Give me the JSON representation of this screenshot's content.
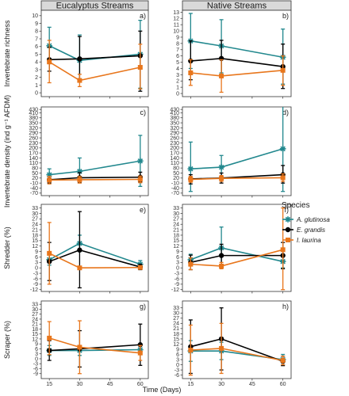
{
  "figure": {
    "columns": [
      "Eucalyptus Streams",
      "Native Streams"
    ],
    "xlabel": "Time (Days)",
    "x_ticks": [
      15,
      30,
      45,
      60
    ],
    "legend": {
      "title": "Species",
      "placement": "right",
      "entries": [
        {
          "name": "A. glutinosa",
          "color": "#22888e",
          "marker": "star"
        },
        {
          "name": "E. grandis",
          "color": "#000000",
          "marker": "circle"
        },
        {
          "name": "I. laurina",
          "color": "#e8761c",
          "marker": "square"
        }
      ]
    }
  },
  "chart_data": [
    {
      "type": "line",
      "panel": "a)",
      "row": 0,
      "col": 0,
      "ylabel": "Invertebrate richness",
      "ylim": [
        -0.5,
        10.7
      ],
      "y_ticks": [
        0,
        1,
        2,
        3,
        4,
        5,
        6,
        7,
        8,
        9,
        10
      ],
      "x": [
        15,
        30,
        60
      ],
      "series": [
        {
          "name": "A. glutinosa",
          "color": "#22888e",
          "values": [
            6.1,
            4.2,
            5.0
          ],
          "lower": [
            3.9,
            1.5,
            0.6
          ],
          "upper": [
            8.5,
            7.5,
            9.4
          ]
        },
        {
          "name": "E. grandis",
          "color": "#000000",
          "values": [
            4.3,
            4.4,
            4.8
          ],
          "lower": [
            2.8,
            1.5,
            0.2
          ],
          "upper": [
            5.9,
            7.3,
            8.0
          ]
        },
        {
          "name": "I. laurina",
          "color": "#e8761c",
          "values": [
            4.0,
            1.6,
            3.3
          ],
          "lower": [
            1.3,
            0.8,
            0.5
          ],
          "upper": [
            6.8,
            2.4,
            6.3
          ]
        }
      ]
    },
    {
      "type": "line",
      "panel": "b)",
      "row": 0,
      "col": 1,
      "ylim": [
        -0.5,
        13.3
      ],
      "y_ticks": [
        0,
        1,
        2,
        3,
        4,
        5,
        6,
        7,
        8,
        9,
        10,
        11,
        12,
        13
      ],
      "x": [
        15,
        30,
        60
      ],
      "series": [
        {
          "name": "A. glutinosa",
          "color": "#22888e",
          "values": [
            8.4,
            7.6,
            5.8
          ],
          "lower": [
            4.0,
            3.3,
            1.5
          ],
          "upper": [
            12.8,
            11.8,
            10.3
          ]
        },
        {
          "name": "E. grandis",
          "color": "#000000",
          "values": [
            5.2,
            5.6,
            4.3
          ],
          "lower": [
            2.2,
            2.6,
            0.8
          ],
          "upper": [
            8.4,
            8.5,
            7.9
          ]
        },
        {
          "name": "I. laurina",
          "color": "#e8761c",
          "values": [
            3.3,
            2.8,
            3.7
          ],
          "lower": [
            1.3,
            0.2,
            1.3
          ],
          "upper": [
            5.4,
            5.4,
            6.0
          ]
        }
      ]
    },
    {
      "type": "line",
      "panel": "c)",
      "row": 1,
      "col": 0,
      "ylabel": "Invertebrate density (ind g⁻¹ AFDM)",
      "ylim": [
        -85,
        445
      ],
      "y_ticks": [
        -70,
        -40,
        -10,
        20,
        50,
        80,
        110,
        140,
        170,
        200,
        230,
        260,
        290,
        320,
        350,
        380,
        410,
        430
      ],
      "x": [
        15,
        30,
        60
      ],
      "series": [
        {
          "name": "A. glutinosa",
          "color": "#22888e",
          "values": [
            40,
            60,
            122
          ],
          "lower": [
            5,
            18,
            -30
          ],
          "upper": [
            75,
            140,
            275
          ]
        },
        {
          "name": "E. grandis",
          "color": "#000000",
          "values": [
            10,
            22,
            25
          ],
          "lower": [
            -10,
            -8,
            -5
          ],
          "upper": [
            30,
            52,
            55
          ]
        },
        {
          "name": "I. laurina",
          "color": "#e8761c",
          "values": [
            8,
            10,
            12
          ],
          "lower": [
            -15,
            -10,
            -8
          ],
          "upper": [
            30,
            30,
            32
          ]
        }
      ]
    },
    {
      "type": "line",
      "panel": "d)",
      "row": 1,
      "col": 1,
      "ylim": [
        -85,
        445
      ],
      "y_ticks": [
        -70,
        -40,
        -10,
        20,
        50,
        80,
        110,
        140,
        170,
        200,
        230,
        260,
        290,
        320,
        350,
        380,
        410,
        430
      ],
      "x": [
        15,
        30,
        60
      ],
      "series": [
        {
          "name": "A. glutinosa",
          "color": "#22888e",
          "values": [
            75,
            85,
            195
          ],
          "lower": [
            -60,
            20,
            -60
          ],
          "upper": [
            235,
            155,
            455
          ]
        },
        {
          "name": "E. grandis",
          "color": "#000000",
          "values": [
            15,
            20,
            40
          ],
          "lower": [
            -15,
            -10,
            -10
          ],
          "upper": [
            40,
            50,
            95
          ]
        },
        {
          "name": "I. laurina",
          "color": "#e8761c",
          "values": [
            12,
            18,
            22
          ],
          "lower": [
            -5,
            0,
            0
          ],
          "upper": [
            30,
            35,
            45
          ]
        }
      ]
    },
    {
      "type": "line",
      "panel": "e)",
      "row": 2,
      "col": 0,
      "ylabel": "Shredder (%)",
      "ylim": [
        -13,
        35
      ],
      "y_ticks": [
        -12,
        -9,
        -6,
        -3,
        0,
        3,
        6,
        9,
        12,
        15,
        18,
        21,
        24,
        27,
        30,
        33
      ],
      "x": [
        15,
        30,
        60
      ],
      "series": [
        {
          "name": "A. glutinosa",
          "color": "#22888e",
          "values": [
            4.5,
            13.5,
            2.0
          ],
          "lower": [
            1.5,
            9.0,
            -0.5
          ],
          "upper": [
            8.0,
            18.0,
            4.0
          ]
        },
        {
          "name": "E. grandis",
          "color": "#000000",
          "values": [
            3.5,
            9.8,
            0.5
          ],
          "lower": [
            -7.0,
            -11.0,
            -1.0
          ],
          "upper": [
            14.0,
            31.0,
            2.0
          ]
        },
        {
          "name": "I. laurina",
          "color": "#e8761c",
          "values": [
            8.0,
            0.0,
            0.2
          ],
          "lower": [
            -9.0,
            -0.5,
            -0.5
          ],
          "upper": [
            25.0,
            0.5,
            1.0
          ]
        }
      ]
    },
    {
      "type": "line",
      "panel": "f)",
      "row": 2,
      "col": 1,
      "ylim": [
        -13,
        35
      ],
      "y_ticks": [
        -12,
        -9,
        -6,
        -3,
        0,
        3,
        6,
        9,
        12,
        15,
        18,
        21,
        24,
        27,
        30,
        33
      ],
      "x": [
        15,
        30,
        60
      ],
      "series": [
        {
          "name": "A. glutinosa",
          "color": "#22888e",
          "values": [
            4.5,
            11.0,
            3.5
          ],
          "lower": [
            1.5,
            0.0,
            0.0
          ],
          "upper": [
            7.5,
            22.5,
            7.0
          ]
        },
        {
          "name": "E. grandis",
          "color": "#000000",
          "values": [
            3.0,
            6.8,
            6.8
          ],
          "lower": [
            -1.0,
            1.0,
            -0.5
          ],
          "upper": [
            7.0,
            13.0,
            14.0
          ]
        },
        {
          "name": "I. laurina",
          "color": "#e8761c",
          "values": [
            2.0,
            1.0,
            10.0
          ],
          "lower": [
            -1.0,
            -0.5,
            -12.0
          ],
          "upper": [
            5.5,
            3.0,
            33.0
          ]
        }
      ]
    },
    {
      "type": "line",
      "panel": "g)",
      "row": 3,
      "col": 0,
      "ylabel": "Scraper (%)",
      "ylim": [
        -12,
        35
      ],
      "y_ticks": [
        -9,
        -6,
        -3,
        0,
        3,
        6,
        9,
        12,
        15,
        18,
        21,
        24,
        27,
        30,
        33
      ],
      "x": [
        15,
        30,
        60
      ],
      "series": [
        {
          "name": "A. glutinosa",
          "color": "#22888e",
          "values": [
            5.0,
            5.0,
            5.5
          ],
          "lower": [
            2.0,
            2.0,
            2.5
          ],
          "upper": [
            8.0,
            8.0,
            8.5
          ]
        },
        {
          "name": "E. grandis",
          "color": "#000000",
          "values": [
            5.0,
            6.0,
            8.5
          ],
          "lower": [
            -1.0,
            -5.0,
            -4.0
          ],
          "upper": [
            11.0,
            17.0,
            21.0
          ]
        },
        {
          "name": "I. laurina",
          "color": "#e8761c",
          "values": [
            12.5,
            7.0,
            3.5
          ],
          "lower": [
            2.5,
            -9.0,
            -1.0
          ],
          "upper": [
            22.5,
            23.0,
            8.0
          ]
        }
      ]
    },
    {
      "type": "line",
      "panel": "h)",
      "row": 3,
      "col": 1,
      "ylim": [
        -8,
        37
      ],
      "y_ticks": [
        -6,
        -3,
        0,
        3,
        6,
        9,
        12,
        15,
        18,
        21,
        24,
        27,
        30,
        33
      ],
      "x": [
        15,
        30,
        60
      ],
      "series": [
        {
          "name": "A. glutinosa",
          "color": "#22888e",
          "values": [
            8.0,
            8.0,
            3.0
          ],
          "lower": [
            2.0,
            3.0,
            0.0
          ],
          "upper": [
            14.0,
            13.0,
            6.0
          ]
        },
        {
          "name": "E. grandis",
          "color": "#000000",
          "values": [
            10.5,
            15.0,
            2.0
          ],
          "lower": [
            -5.0,
            -3.0,
            -0.5
          ],
          "upper": [
            26.0,
            33.0,
            5.0
          ]
        },
        {
          "name": "I. laurina",
          "color": "#e8761c",
          "values": [
            8.5,
            9.5,
            2.5
          ],
          "lower": [
            -6.0,
            -5.0,
            0.0
          ],
          "upper": [
            23.0,
            24.0,
            5.0
          ]
        }
      ]
    }
  ]
}
